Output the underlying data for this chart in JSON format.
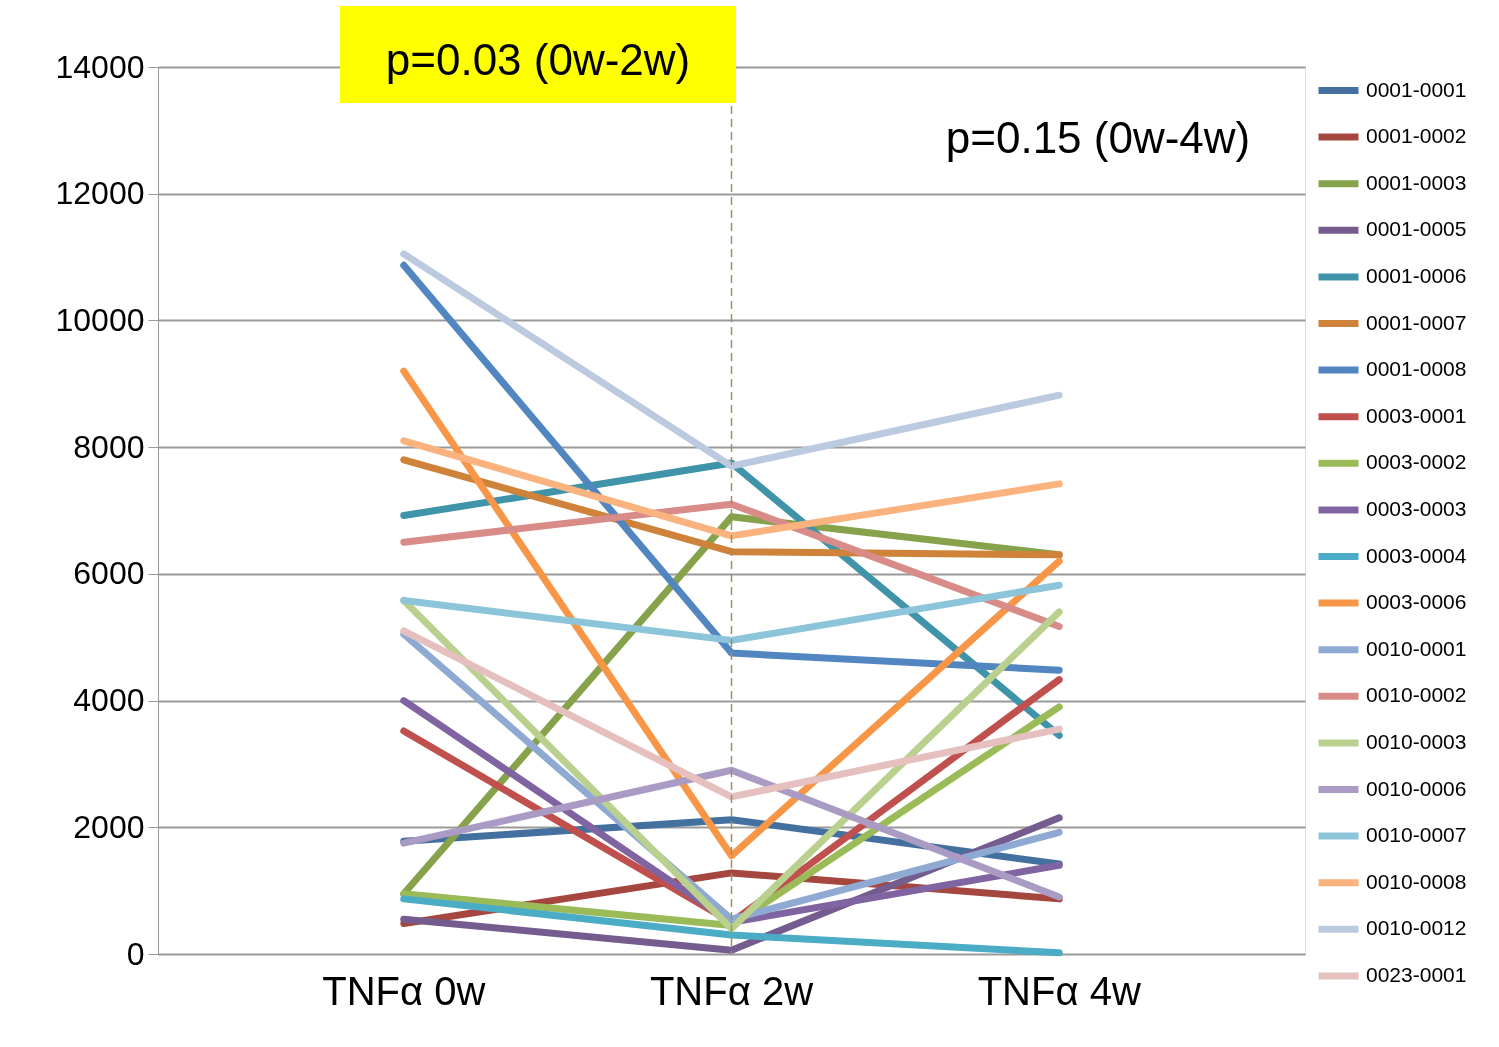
{
  "chart_data": {
    "type": "line",
    "categories": [
      "TNFα 0w",
      "TNFα 2w",
      "TNFα 4w"
    ],
    "ylim": [
      0,
      14000
    ],
    "yticks": [
      0,
      2000,
      4000,
      6000,
      8000,
      10000,
      12000,
      14000
    ],
    "grid": "y",
    "legend": "right",
    "marker": "none",
    "line_style": "solid",
    "annotations": [
      "p=0.03 (0w-2w)",
      "p=0.15 (0w-4w)"
    ],
    "ref_lines": [
      {
        "axis": "x",
        "value": "TNFα 2w",
        "color": "#a09060",
        "line_style": "dashed"
      }
    ],
    "series": [
      {
        "name": "0001-0001",
        "color": "#4470a0",
        "values": [
          1780,
          2120,
          1420
        ]
      },
      {
        "name": "0001-0002",
        "color": "#a5463f",
        "values": [
          480,
          1280,
          870
        ]
      },
      {
        "name": "0001-0003",
        "color": "#86a24a",
        "values": [
          950,
          6900,
          6300
        ]
      },
      {
        "name": "0001-0005",
        "color": "#745c8f",
        "values": [
          550,
          60,
          2150
        ]
      },
      {
        "name": "0001-0006",
        "color": "#3f94a9",
        "values": [
          6920,
          7750,
          3450
        ]
      },
      {
        "name": "0001-0007",
        "color": "#cf823a",
        "values": [
          7800,
          6350,
          6300
        ]
      },
      {
        "name": "0001-0008",
        "color": "#5186c0",
        "values": [
          10870,
          4750,
          4480
        ]
      },
      {
        "name": "0003-0001",
        "color": "#c0504d",
        "values": [
          3520,
          500,
          4330
        ]
      },
      {
        "name": "0003-0002",
        "color": "#9bbb59",
        "values": [
          950,
          450,
          3900
        ]
      },
      {
        "name": "0003-0003",
        "color": "#8064a2",
        "values": [
          4000,
          500,
          1400
        ]
      },
      {
        "name": "0003-0004",
        "color": "#4bacc6",
        "values": [
          870,
          300,
          20
        ]
      },
      {
        "name": "0003-0006",
        "color": "#f79646",
        "values": [
          9200,
          1550,
          6200
        ]
      },
      {
        "name": "0010-0001",
        "color": "#8eaad2",
        "values": [
          5050,
          550,
          1920
        ]
      },
      {
        "name": "0010-0002",
        "color": "#d98b88",
        "values": [
          6500,
          7100,
          5170
        ]
      },
      {
        "name": "0010-0003",
        "color": "#b9d08f",
        "values": [
          5580,
          400,
          5400
        ]
      },
      {
        "name": "0010-0006",
        "color": "#a99bc3",
        "values": [
          1750,
          2900,
          900
        ]
      },
      {
        "name": "0010-0007",
        "color": "#8cc4da",
        "values": [
          5580,
          4950,
          5820
        ]
      },
      {
        "name": "0010-0008",
        "color": "#fab37f",
        "values": [
          8100,
          6600,
          7420
        ]
      },
      {
        "name": "0010-0012",
        "color": "#bccadf",
        "values": [
          11050,
          7700,
          8820
        ]
      },
      {
        "name": "0023-0001",
        "color": "#e5c0bf",
        "values": [
          5100,
          2480,
          3550
        ]
      }
    ]
  }
}
